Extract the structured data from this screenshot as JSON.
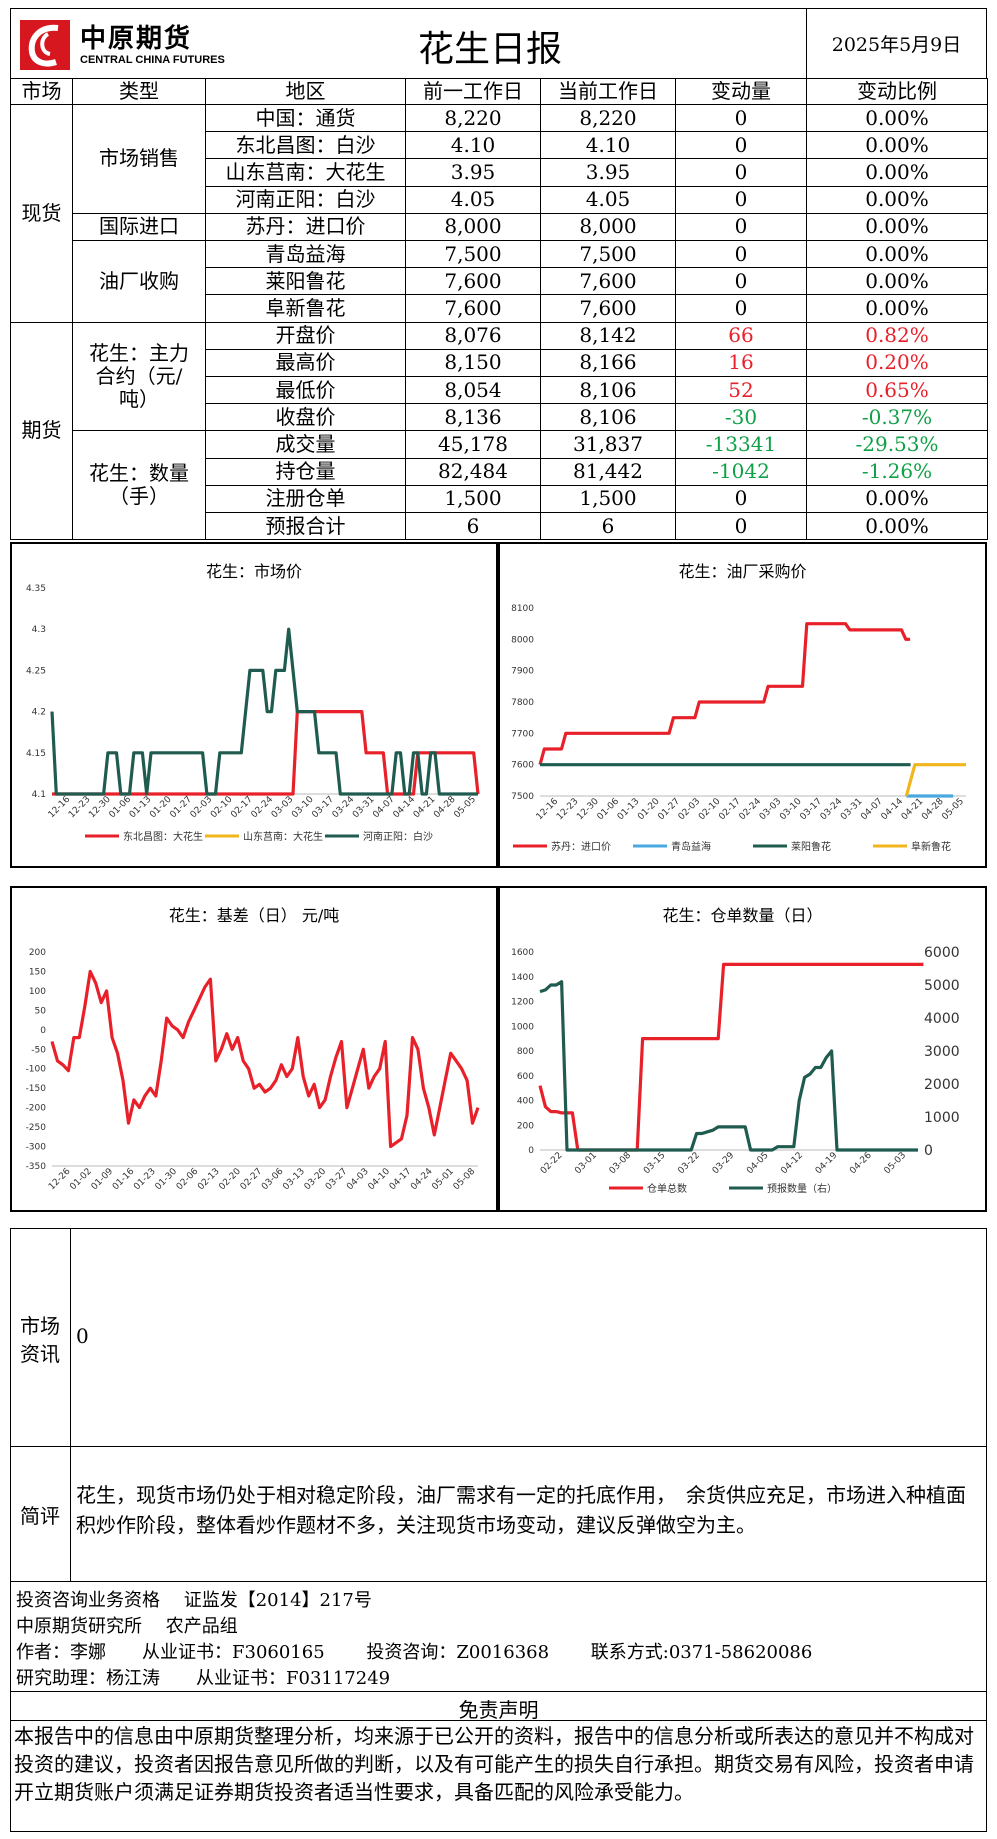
{
  "header": {
    "logo_cn": "中原期货",
    "logo_en": "CENTRAL CHINA FUTURES",
    "title": "花生日报",
    "date": "2025年5月9日"
  },
  "table": {
    "headers": [
      "市场",
      "类型",
      "地区",
      "前一工作日",
      "当前工作日",
      "变动量",
      "变动比例"
    ],
    "market_spot": "现货",
    "market_futures": "期货",
    "type_sales": "市场销售",
    "type_import": "国际进口",
    "type_oil": "油厂收购",
    "type_main": "花生：主力合约（元/吨）",
    "type_qty": "花生：数量（手）",
    "rows": [
      {
        "region": "中国：通货",
        "prev": "8,220",
        "cur": "8,220",
        "chg": "0",
        "pct": "0.00%",
        "tone": ""
      },
      {
        "region": "东北昌图：白沙",
        "prev": "4.10",
        "cur": "4.10",
        "chg": "0",
        "pct": "0.00%",
        "tone": ""
      },
      {
        "region": "山东莒南：大花生",
        "prev": "3.95",
        "cur": "3.95",
        "chg": "0",
        "pct": "0.00%",
        "tone": ""
      },
      {
        "region": "河南正阳：白沙",
        "prev": "4.05",
        "cur": "4.05",
        "chg": "0",
        "pct": "0.00%",
        "tone": ""
      },
      {
        "region": "苏丹：进口价",
        "prev": "8,000",
        "cur": "8,000",
        "chg": "0",
        "pct": "0.00%",
        "tone": ""
      },
      {
        "region": "青岛益海",
        "prev": "7,500",
        "cur": "7,500",
        "chg": "0",
        "pct": "0.00%",
        "tone": ""
      },
      {
        "region": "莱阳鲁花",
        "prev": "7,600",
        "cur": "7,600",
        "chg": "0",
        "pct": "0.00%",
        "tone": ""
      },
      {
        "region": "阜新鲁花",
        "prev": "7,600",
        "cur": "7,600",
        "chg": "0",
        "pct": "0.00%",
        "tone": ""
      },
      {
        "region": "开盘价",
        "prev": "8,076",
        "cur": "8,142",
        "chg": "66",
        "pct": "0.82%",
        "tone": "red"
      },
      {
        "region": "最高价",
        "prev": "8,150",
        "cur": "8,166",
        "chg": "16",
        "pct": "0.20%",
        "tone": "red"
      },
      {
        "region": "最低价",
        "prev": "8,054",
        "cur": "8,106",
        "chg": "52",
        "pct": "0.65%",
        "tone": "red"
      },
      {
        "region": "收盘价",
        "prev": "8,136",
        "cur": "8,106",
        "chg": "-30",
        "pct": "-0.37%",
        "tone": "green"
      },
      {
        "region": "成交量",
        "prev": "45,178",
        "cur": "31,837",
        "chg": "-13341",
        "pct": "-29.53%",
        "tone": "green"
      },
      {
        "region": "持仓量",
        "prev": "82,484",
        "cur": "81,442",
        "chg": "-1042",
        "pct": "-1.26%",
        "tone": "green"
      },
      {
        "region": "注册仓单",
        "prev": "1,500",
        "cur": "1,500",
        "chg": "0",
        "pct": "0.00%",
        "tone": ""
      },
      {
        "region": "预报合计",
        "prev": "6",
        "cur": "6",
        "chg": "0",
        "pct": "0.00%",
        "tone": ""
      }
    ]
  },
  "colors": {
    "red": "#e8202a",
    "green": "#10a046",
    "dark_green": "#1f5c4f",
    "yellow": "#f2b51c",
    "blue": "#4aa8e0"
  },
  "chart_data": [
    {
      "type": "line",
      "title": "花生：市场价",
      "ylim": [
        4.1,
        4.35
      ],
      "yticks": [
        "4.1",
        "4.15",
        "4.2",
        "4.25",
        "4.3",
        "4.35"
      ],
      "xticks": [
        "12-16",
        "12-23",
        "12-30",
        "01-06",
        "01-13",
        "01-20",
        "01-27",
        "02-03",
        "02-10",
        "02-17",
        "02-24",
        "03-03",
        "03-10",
        "03-17",
        "03-24",
        "03-31",
        "04-07",
        "04-14",
        "04-21",
        "04-28",
        "05-05"
      ],
      "series": [
        {
          "name": "东北昌图：大花生",
          "color": "#e8202a",
          "values": [
            4.1,
            4.1,
            4.1,
            4.1,
            4.1,
            4.1,
            4.1,
            4.1,
            4.1,
            4.1,
            4.1,
            4.1,
            4.1,
            4.1,
            4.1,
            4.1,
            4.1,
            4.1,
            4.1,
            4.1,
            4.1,
            4.1,
            4.1,
            4.1,
            4.1,
            4.1,
            4.1,
            4.1,
            4.1,
            4.1,
            4.1,
            4.1,
            4.1,
            4.1,
            4.1,
            4.1,
            4.1,
            4.1,
            4.1,
            4.1,
            4.1,
            4.1,
            4.1,
            4.1,
            4.1,
            4.1,
            4.1,
            4.1,
            4.1,
            4.1,
            4.1,
            4.1,
            4.1,
            4.1,
            4.1,
            4.1,
            4.1,
            4.2,
            4.2,
            4.2,
            4.2,
            4.2,
            4.2,
            4.2,
            4.2,
            4.2,
            4.2,
            4.2,
            4.2,
            4.2,
            4.2,
            4.2,
            4.2,
            4.15,
            4.15,
            4.15,
            4.15,
            4.15,
            4.1,
            4.1,
            4.1,
            4.1,
            4.1,
            4.1,
            4.1,
            4.15,
            4.15,
            4.15,
            4.15,
            4.15,
            4.15,
            4.15,
            4.15,
            4.15,
            4.15,
            4.15,
            4.15,
            4.15,
            4.15,
            4.1
          ]
        },
        {
          "name": "山东莒南：大花生",
          "color": "#f2b51c",
          "values": []
        },
        {
          "name": "河南正阳：白沙",
          "color": "#1f5c4f",
          "values": [
            4.2,
            4.1,
            4.1,
            4.1,
            4.1,
            4.1,
            4.1,
            4.1,
            4.1,
            4.1,
            4.1,
            4.1,
            4.1,
            4.15,
            4.15,
            4.15,
            4.1,
            4.1,
            4.1,
            4.15,
            4.15,
            4.15,
            4.1,
            4.15,
            4.15,
            4.15,
            4.15,
            4.15,
            4.15,
            4.15,
            4.15,
            4.15,
            4.15,
            4.15,
            4.15,
            4.15,
            4.1,
            4.1,
            4.1,
            4.15,
            4.15,
            4.15,
            4.15,
            4.15,
            4.15,
            4.2,
            4.25,
            4.25,
            4.25,
            4.25,
            4.2,
            4.2,
            4.25,
            4.25,
            4.25,
            4.3,
            4.25,
            4.2,
            4.2,
            4.2,
            4.2,
            4.2,
            4.15,
            4.15,
            4.15,
            4.15,
            4.15,
            4.1,
            4.1,
            4.1,
            4.1,
            4.1,
            4.1,
            4.1,
            4.1,
            4.1,
            4.1,
            4.1,
            4.1,
            4.1,
            4.15,
            4.15,
            4.1,
            4.1,
            4.15,
            4.15,
            4.1,
            4.1,
            4.15,
            4.15,
            4.1,
            4.1,
            4.1,
            4.1,
            4.1,
            4.1,
            4.1,
            4.1,
            4.1,
            4.1
          ]
        }
      ]
    },
    {
      "type": "line",
      "title": "花生：油厂采购价",
      "ylim": [
        7500,
        8100
      ],
      "yticks": [
        "7500",
        "7600",
        "7700",
        "7800",
        "7900",
        "8000",
        "8100"
      ],
      "xticks": [
        "12-16",
        "12-23",
        "12-30",
        "01-06",
        "01-13",
        "01-20",
        "01-27",
        "02-03",
        "02-10",
        "02-17",
        "02-24",
        "03-03",
        "03-10",
        "03-17",
        "03-24",
        "03-31",
        "04-07",
        "04-14",
        "04-21",
        "04-28",
        "05-05"
      ],
      "series": [
        {
          "name": "苏丹：进口价",
          "color": "#e8202a",
          "values": [
            7600,
            7650,
            7650,
            7650,
            7650,
            7650,
            7700,
            7700,
            7700,
            7700,
            7700,
            7700,
            7700,
            7700,
            7700,
            7700,
            7700,
            7700,
            7700,
            7700,
            7700,
            7700,
            7700,
            7700,
            7700,
            7700,
            7700,
            7700,
            7700,
            7700,
            7700,
            7750,
            7750,
            7750,
            7750,
            7750,
            7750,
            7800,
            7800,
            7800,
            7800,
            7800,
            7800,
            7800,
            7800,
            7800,
            7800,
            7800,
            7800,
            7800,
            7800,
            7800,
            7800,
            7850,
            7850,
            7850,
            7850,
            7850,
            7850,
            7850,
            7850,
            7850,
            8050,
            8050,
            8050,
            8050,
            8050,
            8050,
            8050,
            8050,
            8050,
            8050,
            8030,
            8030,
            8030,
            8030,
            8030,
            8030,
            8030,
            8030,
            8030,
            8030,
            8030,
            8030,
            8030,
            8000,
            8000
          ]
        },
        {
          "name": "青岛益海",
          "color": "#4aa8e0",
          "values": [
            7500,
            7500,
            7500,
            7500,
            7500
          ]
        },
        {
          "name": "莱阳鲁花",
          "color": "#1f5c4f",
          "values": [
            7600,
            7600
          ]
        },
        {
          "name": "阜新鲁花",
          "color": "#f2b51c",
          "values": [
            7500,
            7500,
            7500,
            7500,
            7600,
            7600,
            7600,
            7600,
            7600,
            7600
          ]
        }
      ]
    },
    {
      "type": "line",
      "title": "花生：基差（日） 元/吨",
      "ylim": [
        -350,
        200
      ],
      "yticks": [
        "-350",
        "-300",
        "-250",
        "-200",
        "-150",
        "-100",
        "-50",
        "0",
        "50",
        "100",
        "150",
        "200"
      ],
      "xticks": [
        "12-26",
        "01-02",
        "01-09",
        "01-16",
        "01-23",
        "01-30",
        "02-06",
        "02-13",
        "02-20",
        "02-27",
        "03-06",
        "03-13",
        "03-20",
        "03-27",
        "04-03",
        "04-10",
        "04-17",
        "04-24",
        "05-01",
        "05-08"
      ],
      "series": [
        {
          "name": "基差",
          "color": "#e8202a",
          "values": [
            -30,
            -80,
            -90,
            -105,
            -20,
            -20,
            60,
            150,
            120,
            70,
            100,
            -20,
            -60,
            -130,
            -240,
            -180,
            -200,
            -170,
            -150,
            -170,
            -80,
            30,
            10,
            0,
            -20,
            20,
            50,
            80,
            110,
            130,
            -80,
            -50,
            -10,
            -50,
            -20,
            -80,
            -100,
            -150,
            -140,
            -160,
            -150,
            -130,
            -90,
            -120,
            -100,
            -20,
            -120,
            -170,
            -140,
            -200,
            -180,
            -120,
            -70,
            -30,
            -200,
            -150,
            -100,
            -50,
            -150,
            -120,
            -100,
            -30,
            -300,
            -290,
            -280,
            -220,
            -20,
            -50,
            -150,
            -200,
            -270,
            -200,
            -130,
            -60,
            -80,
            -100,
            -130,
            -240,
            -200
          ]
        }
      ]
    },
    {
      "type": "line",
      "title": "花生：仓单数量（日）",
      "ylim": [
        0,
        1600
      ],
      "y2lim": [
        0,
        6000
      ],
      "yticks": [
        "0",
        "200",
        "400",
        "600",
        "800",
        "1000",
        "1200",
        "1400",
        "1600"
      ],
      "y2ticks": [
        "0",
        "1000",
        "2000",
        "3000",
        "4000",
        "5000",
        "6000"
      ],
      "xticks": [
        "02-22",
        "03-01",
        "03-08",
        "03-15",
        "03-22",
        "03-29",
        "04-05",
        "04-12",
        "04-19",
        "04-26",
        "05-03"
      ],
      "series": [
        {
          "name": "仓单总数",
          "color": "#e8202a",
          "axis": "left",
          "values": [
            520,
            350,
            310,
            310,
            300,
            300,
            300,
            0,
            0,
            0,
            0,
            0,
            0,
            0,
            0,
            0,
            0,
            0,
            0,
            900,
            900,
            900,
            900,
            900,
            900,
            900,
            900,
            900,
            900,
            900,
            900,
            900,
            900,
            900,
            1500,
            1500,
            1500,
            1500,
            1500,
            1500,
            1500,
            1500,
            1500,
            1500,
            1500,
            1500,
            1500,
            1500,
            1500,
            1500,
            1500,
            1500,
            1500,
            1500,
            1500,
            1500,
            1500,
            1500,
            1500,
            1500,
            1500,
            1500,
            1500,
            1500,
            1500,
            1500,
            1500,
            1500,
            1500,
            1500,
            1500,
            1500
          ]
        },
        {
          "name": "预报数量（右）",
          "color": "#1f5c4f",
          "axis": "right",
          "values": [
            4800,
            4850,
            5000,
            5000,
            5100,
            0,
            0,
            0,
            0,
            0,
            0,
            0,
            0,
            0,
            0,
            0,
            0,
            0,
            0,
            0,
            0,
            0,
            0,
            0,
            0,
            0,
            0,
            0,
            0,
            500,
            500,
            550,
            600,
            700,
            700,
            700,
            700,
            700,
            700,
            0,
            0,
            0,
            0,
            0,
            100,
            100,
            100,
            100,
            1500,
            2200,
            2300,
            2500,
            2500,
            2800,
            3000,
            0,
            0,
            0,
            0,
            0,
            0,
            0,
            0,
            0,
            0,
            0,
            0,
            0,
            0,
            0,
            0
          ]
        }
      ]
    }
  ],
  "info": {
    "news_label": "市场资讯",
    "news_text": "0",
    "comment_label": "简评",
    "comment_text": "花生，现货市场仍处于相对稳定阶段，油厂需求有一定的托底作用，　余货供应充足，市场进入种植面积炒作阶段，整体看炒作题材不多，关注现货市场变动，建议反弹做空为主。"
  },
  "footer": {
    "line1": "投资咨询业务资格　 证监发【2014】217号",
    "line2": "中原期货研究所　 农产品组",
    "line3": "作者：李娜　　从业证书：F3060165　　 投资咨询：Z0016368　　 联系方式:0371-58620086",
    "line4": "研究助理：杨江涛　　从业证书：F03117249",
    "disclaimer_title": "免责声明",
    "disclaimer_text": "本报告中的信息由中原期货整理分析，均来源于已公开的资料，报告中的信息分析或所表达的意见并不构成对投资的建议，投资者因报告意见所做的判断，以及有可能产生的损失自行承担。期货交易有风险，投资者申请开立期货账户须满足证券期货投资者适当性要求，具备匹配的风险承受能力。"
  }
}
